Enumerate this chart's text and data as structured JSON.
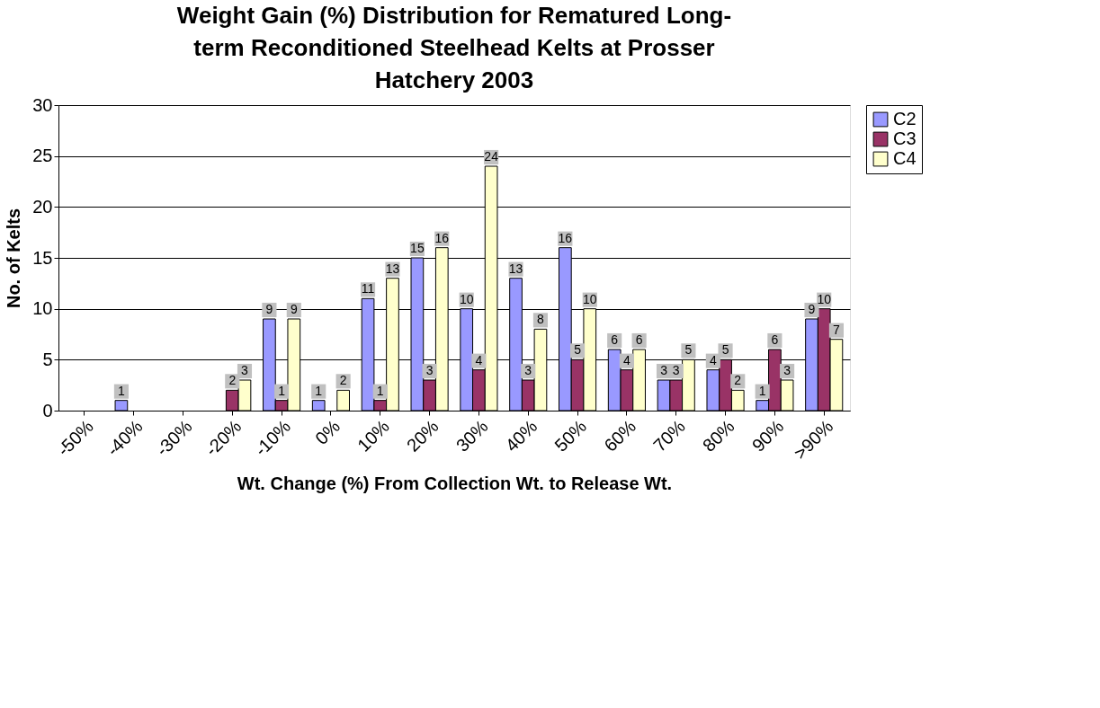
{
  "chart_data": {
    "type": "bar",
    "title": "Weight Gain (%) Distribution for Rematured Long-term Reconditioned Steelhead Kelts at Prosser Hatchery 2003",
    "xlabel": "Wt. Change (%) From Collection Wt. to Release Wt.",
    "ylabel": "No. of Kelts",
    "categories": [
      "-50%",
      "-40%",
      "-30%",
      "-20%",
      "-10%",
      "0%",
      "10%",
      "20%",
      "30%",
      "40%",
      "50%",
      "60%",
      "70%",
      "80%",
      "90%",
      ">90%"
    ],
    "series": [
      {
        "name": "C2",
        "color": "#9999ff",
        "values": [
          0,
          1,
          0,
          0,
          9,
          1,
          11,
          15,
          10,
          13,
          16,
          6,
          3,
          4,
          1,
          9
        ],
        "value_labels": [
          null,
          "1",
          null,
          null,
          "9",
          "1",
          "11",
          "15",
          "10",
          "13",
          "16",
          "6",
          "3",
          "4",
          "1",
          "9"
        ]
      },
      {
        "name": "C3",
        "color": "#993366",
        "values": [
          0,
          0,
          0,
          2,
          1,
          0,
          1,
          3,
          4,
          3,
          5,
          4,
          3,
          5,
          6,
          10
        ],
        "value_labels": [
          null,
          null,
          null,
          "2",
          "1",
          null,
          "1",
          "3",
          "4",
          "3",
          "5",
          "4",
          "3",
          "5",
          "6",
          "10"
        ]
      },
      {
        "name": "C4",
        "color": "#ffffcc",
        "values": [
          0,
          0,
          0,
          3,
          9,
          2,
          13,
          16,
          24,
          8,
          10,
          6,
          5,
          2,
          3,
          7
        ],
        "value_labels": [
          null,
          null,
          null,
          "3",
          "9",
          "2",
          "13",
          "16",
          "24",
          "8",
          "10",
          "6",
          "5",
          "2",
          "3",
          "7"
        ]
      }
    ],
    "ylim": [
      0,
      30
    ],
    "yticks": [
      0,
      5,
      10,
      15,
      20,
      25,
      30
    ],
    "grid": "y",
    "legend": "right"
  }
}
